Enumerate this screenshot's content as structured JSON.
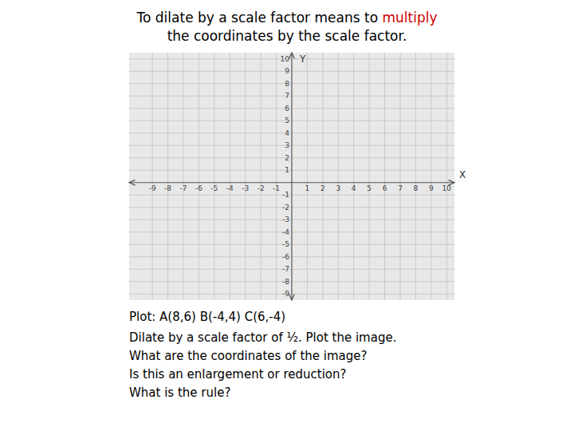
{
  "chart_data": {
    "type": "coordinate_grid",
    "title": [
      {
        "text": "To dilate by a scale factor means to ",
        "color": "#000000"
      },
      {
        "text": "multiply",
        "color": "#cc0000"
      },
      {
        "text": "the coordinates by the scale factor.",
        "color": "#000000"
      }
    ],
    "xlabel": "X",
    "ylabel": "Y",
    "xlim": [
      -10.5,
      10.5
    ],
    "ylim": [
      -9.5,
      10.5
    ],
    "xticks": [
      -9,
      -8,
      -7,
      -6,
      -5,
      -4,
      -3,
      -2,
      -1,
      1,
      2,
      3,
      4,
      5,
      6,
      7,
      8,
      9,
      10
    ],
    "yticks": [
      -9,
      -8,
      -7,
      -6,
      -5,
      -4,
      -3,
      -2,
      -1,
      1,
      2,
      3,
      4,
      5,
      6,
      7,
      8,
      9,
      10
    ],
    "grid": true,
    "annotations": [
      "Plot: A(8,6) B(-4,4) C(6,-4)",
      "Dilate by a scale factor of ½. Plot the image.\nWhat are the coordinates of the image?\nIs this an enlargement or reduction?\nWhat is the rule?"
    ]
  }
}
